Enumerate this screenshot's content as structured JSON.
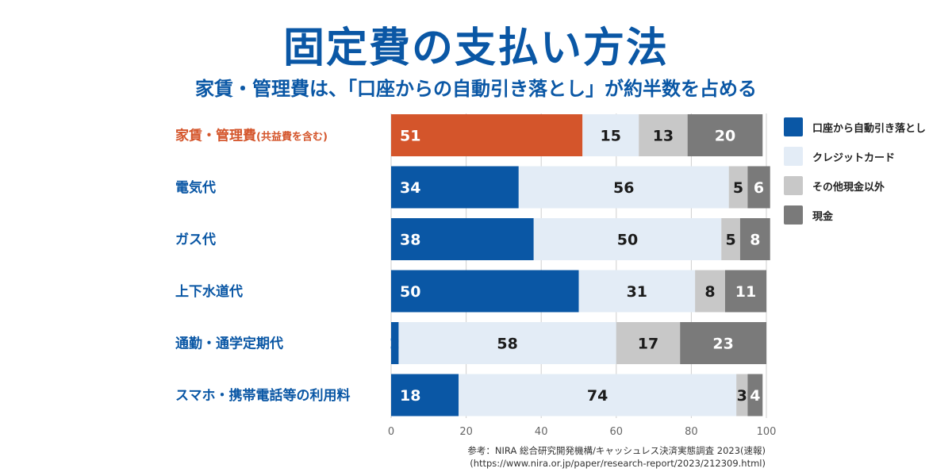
{
  "header": {
    "title": "固定費の支払い方法",
    "subtitle": "家賃・管理費は、「口座からの自動引き落とし」が約半数を占める"
  },
  "chart_data": {
    "type": "bar",
    "orientation": "horizontal",
    "stacked": true,
    "categories": [
      "家賃・管理費(共益費を含む)",
      "電気代",
      "ガス代",
      "上下水道代",
      "通勤・通学定期代",
      "スマホ・携帯電話等の利用料"
    ],
    "category_label_main": [
      "家賃・管理費",
      "電気代",
      "ガス代",
      "上下水道代",
      "通勤・通学定期代",
      "スマホ・携帯電話等の利用料"
    ],
    "category_label_note": [
      "(共益費を含む)",
      "",
      "",
      "",
      "",
      ""
    ],
    "highlight_index": 0,
    "series": [
      {
        "name": "口座から自動引き落とし",
        "color": "#0a57a5",
        "highlight_color": "#d4552b",
        "label_color": "#ffffff",
        "values": [
          51,
          34,
          38,
          50,
          2,
          18
        ]
      },
      {
        "name": "クレジットカード",
        "color": "#e3ecf6",
        "label_color": "#1b1b1b",
        "values": [
          15,
          56,
          50,
          31,
          58,
          74
        ]
      },
      {
        "name": "その他現金以外",
        "color": "#c8c8c8",
        "label_color": "#1b1b1b",
        "values": [
          13,
          5,
          5,
          8,
          17,
          3
        ]
      },
      {
        "name": "現金",
        "color": "#7a7a7a",
        "label_color": "#ffffff",
        "values": [
          20,
          6,
          8,
          11,
          23,
          4
        ]
      }
    ],
    "xlim": [
      0,
      100
    ],
    "xticks": [
      0,
      20,
      40,
      60,
      80,
      100
    ],
    "grid": true,
    "legend_position": "right"
  },
  "source": {
    "line1": "参考：NIRA 総合研究開発機構/キャッシュレス決済実態調査 2023(速報)",
    "line2": "(https://www.nira.or.jp/paper/research-report/2023/212309.html)"
  },
  "colors": {
    "title": "#0a57a5",
    "category_text": "#0a57a5",
    "highlight_text": "#d4552b",
    "grid": "#cfcfcf",
    "axis_text": "#666666"
  }
}
